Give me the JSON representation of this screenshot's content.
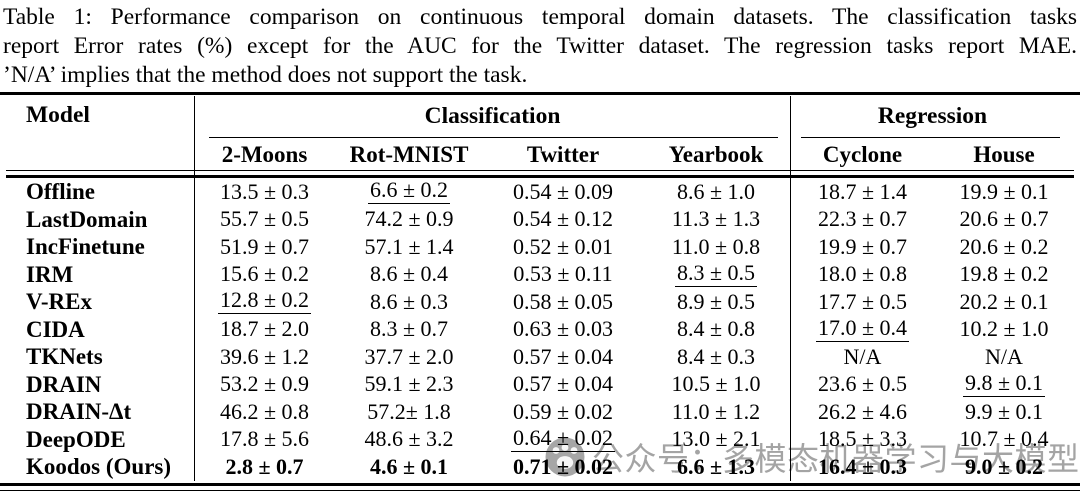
{
  "caption": {
    "lines": [
      "Table 1: Performance comparison on continuous temporal domain datasets. The classification tasks",
      "report Error rates (%) except for the AUC for the Twitter dataset. The regression tasks report MAE.",
      "’N/A’ implies that the method does not support the task."
    ]
  },
  "table": {
    "model_header": "Model",
    "groups": [
      {
        "label": "Classification",
        "columns": 4
      },
      {
        "label": "Regression",
        "columns": 2
      }
    ],
    "columns": [
      "2-Moons",
      "Rot-MNIST",
      "Twitter",
      "Yearbook",
      "Cyclone",
      "House"
    ],
    "rows": [
      {
        "model": "Offline",
        "values": [
          {
            "text": "13.5 ± 0.3"
          },
          {
            "text": "6.6 ± 0.2",
            "underline": true
          },
          {
            "text": "0.54 ± 0.09"
          },
          {
            "text": "8.6 ± 1.0"
          },
          {
            "text": "18.7 ± 1.4"
          },
          {
            "text": "19.9 ± 0.1"
          }
        ]
      },
      {
        "model": "LastDomain",
        "values": [
          {
            "text": "55.7 ± 0.5"
          },
          {
            "text": "74.2 ± 0.9"
          },
          {
            "text": "0.54 ± 0.12"
          },
          {
            "text": "11.3 ± 1.3"
          },
          {
            "text": "22.3 ± 0.7"
          },
          {
            "text": "20.6 ± 0.7"
          }
        ]
      },
      {
        "model": "IncFinetune",
        "values": [
          {
            "text": "51.9 ± 0.7"
          },
          {
            "text": "57.1 ± 1.4"
          },
          {
            "text": "0.52 ± 0.01"
          },
          {
            "text": "11.0 ± 0.8"
          },
          {
            "text": "19.9 ± 0.7"
          },
          {
            "text": "20.6 ± 0.2"
          }
        ]
      },
      {
        "model": "IRM",
        "values": [
          {
            "text": "15.6 ± 0.2"
          },
          {
            "text": "8.6 ± 0.4"
          },
          {
            "text": "0.53 ± 0.11"
          },
          {
            "text": "8.3 ± 0.5",
            "underline": true
          },
          {
            "text": "18.0 ± 0.8"
          },
          {
            "text": "19.8 ± 0.2"
          }
        ]
      },
      {
        "model": "V-REx",
        "values": [
          {
            "text": "12.8 ± 0.2",
            "underline": true
          },
          {
            "text": "8.6 ± 0.3"
          },
          {
            "text": "0.58 ± 0.05"
          },
          {
            "text": "8.9 ± 0.5"
          },
          {
            "text": "17.7 ± 0.5"
          },
          {
            "text": "20.2 ± 0.1"
          }
        ]
      },
      {
        "model": "CIDA",
        "values": [
          {
            "text": "18.7 ± 2.0"
          },
          {
            "text": "8.3 ± 0.7"
          },
          {
            "text": "0.63 ± 0.03"
          },
          {
            "text": "8.4 ± 0.8"
          },
          {
            "text": "17.0 ± 0.4",
            "underline": true
          },
          {
            "text": "10.2 ± 1.0"
          }
        ]
      },
      {
        "model": "TKNets",
        "values": [
          {
            "text": "39.6 ± 1.2"
          },
          {
            "text": "37.7 ± 2.0"
          },
          {
            "text": "0.57 ± 0.04"
          },
          {
            "text": "8.4 ± 0.3"
          },
          {
            "text": "N/A"
          },
          {
            "text": "N/A"
          }
        ]
      },
      {
        "model": "DRAIN",
        "values": [
          {
            "text": "53.2 ± 0.9"
          },
          {
            "text": "59.1 ± 2.3"
          },
          {
            "text": "0.57 ± 0.04"
          },
          {
            "text": "10.5 ± 1.0"
          },
          {
            "text": "23.6 ± 0.5"
          },
          {
            "text": "9.8 ± 0.1",
            "underline": true
          }
        ]
      },
      {
        "model": "DRAIN-Δt",
        "values": [
          {
            "text": "46.2 ± 0.8"
          },
          {
            "text": "57.2± 1.8"
          },
          {
            "text": "0.59 ± 0.02"
          },
          {
            "text": "11.0 ± 1.2"
          },
          {
            "text": "26.2 ± 4.6"
          },
          {
            "text": "9.9 ± 0.1"
          }
        ]
      },
      {
        "model": "DeepODE",
        "values": [
          {
            "text": "17.8 ± 5.6"
          },
          {
            "text": "48.6 ± 3.2"
          },
          {
            "text": "0.64 ± 0.02",
            "underline": true
          },
          {
            "text": "13.0 ± 2.1"
          },
          {
            "text": "18.5 ± 3.3"
          },
          {
            "text": "10.7 ± 0.4"
          }
        ]
      },
      {
        "model": "Koodos (Ours)",
        "values": [
          {
            "text": "2.8 ± 0.7",
            "bold": true
          },
          {
            "text": "4.6 ± 0.1",
            "bold": true
          },
          {
            "text": "0.71 ± 0.02",
            "bold": true
          },
          {
            "text": "6.6 ± 1.3",
            "bold": true
          },
          {
            "text": "16.4 ± 0.3",
            "bold": true
          },
          {
            "text": "9.0 ± 0.2",
            "bold": true
          }
        ]
      }
    ]
  },
  "watermark": {
    "icon": "paw-logo-icon",
    "text": "公众号：多模态机器学习与大模型",
    "color": "#9d9d9d"
  }
}
